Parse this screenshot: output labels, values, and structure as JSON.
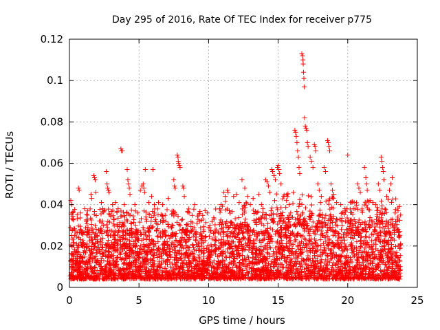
{
  "chart_data": {
    "type": "scatter",
    "title": "Day 295 of 2016, Rate Of TEC Index for receiver p775",
    "xlabel": "GPS time / hours",
    "ylabel": "ROTI / TECUs",
    "xlim": [
      0,
      25
    ],
    "ylim": [
      0,
      0.12
    ],
    "x_ticks": [
      0,
      5,
      10,
      15,
      20,
      25
    ],
    "x_tick_labels": [
      "0",
      "5",
      "10",
      "15",
      "20",
      "25"
    ],
    "y_ticks": [
      0,
      0.02,
      0.04,
      0.06,
      0.08,
      0.1,
      0.12
    ],
    "y_tick_labels": [
      "0",
      "0.02",
      "0.04",
      "0.06",
      "0.08",
      "0.1",
      "0.12"
    ],
    "grid": true,
    "marker": "+",
    "marker_color": "#ff0000",
    "series": [
      {
        "name": "ROTI",
        "note": "dense cloud of ~thousands of samples, mostly 0.005-0.03 TECU, sampled continuously from 0 to ~23.8 h",
        "points": [
          [
            0.1,
            0.042
          ],
          [
            0.15,
            0.04
          ],
          [
            0.2,
            0.036
          ],
          [
            0.25,
            0.033
          ],
          [
            0.65,
            0.048
          ],
          [
            0.7,
            0.047
          ],
          [
            0.8,
            0.036
          ],
          [
            1.1,
            0.038
          ],
          [
            1.3,
            0.037
          ],
          [
            1.55,
            0.045
          ],
          [
            1.6,
            0.043
          ],
          [
            1.75,
            0.054
          ],
          [
            1.8,
            0.053
          ],
          [
            1.85,
            0.052
          ],
          [
            1.9,
            0.046
          ],
          [
            2.3,
            0.041
          ],
          [
            2.4,
            0.038
          ],
          [
            2.65,
            0.056
          ],
          [
            2.7,
            0.05
          ],
          [
            2.75,
            0.048
          ],
          [
            2.8,
            0.047
          ],
          [
            2.85,
            0.046
          ],
          [
            3.1,
            0.04
          ],
          [
            3.3,
            0.041
          ],
          [
            3.5,
            0.038
          ],
          [
            3.7,
            0.067
          ],
          [
            3.75,
            0.066
          ],
          [
            3.8,
            0.066
          ],
          [
            3.95,
            0.04
          ],
          [
            4.1,
            0.036
          ],
          [
            4.2,
            0.052
          ],
          [
            4.25,
            0.05
          ],
          [
            4.3,
            0.048
          ],
          [
            4.35,
            0.045
          ],
          [
            4.15,
            0.057
          ],
          [
            4.7,
            0.04
          ],
          [
            4.9,
            0.036
          ],
          [
            5.1,
            0.047
          ],
          [
            5.2,
            0.049
          ],
          [
            5.3,
            0.05
          ],
          [
            5.35,
            0.048
          ],
          [
            5.4,
            0.046
          ],
          [
            5.45,
            0.057
          ],
          [
            5.7,
            0.041
          ],
          [
            5.9,
            0.044
          ],
          [
            6.0,
            0.057
          ],
          [
            6.1,
            0.04
          ],
          [
            6.4,
            0.041
          ],
          [
            6.7,
            0.04
          ],
          [
            7.1,
            0.043
          ],
          [
            7.5,
            0.052
          ],
          [
            7.55,
            0.049
          ],
          [
            7.6,
            0.048
          ],
          [
            7.75,
            0.064
          ],
          [
            7.8,
            0.063
          ],
          [
            7.82,
            0.061
          ],
          [
            7.85,
            0.06
          ],
          [
            7.9,
            0.059
          ],
          [
            7.95,
            0.058
          ],
          [
            8.15,
            0.049
          ],
          [
            8.2,
            0.048
          ],
          [
            8.25,
            0.044
          ],
          [
            8.6,
            0.036
          ],
          [
            9.0,
            0.04
          ],
          [
            9.3,
            0.035
          ],
          [
            9.6,
            0.033
          ],
          [
            9.9,
            0.036
          ],
          [
            10.1,
            0.03
          ],
          [
            10.4,
            0.033
          ],
          [
            10.8,
            0.038
          ],
          [
            10.9,
            0.04
          ],
          [
            11.1,
            0.046
          ],
          [
            11.2,
            0.044
          ],
          [
            11.35,
            0.047
          ],
          [
            11.4,
            0.046
          ],
          [
            11.8,
            0.044
          ],
          [
            12.0,
            0.045
          ],
          [
            12.2,
            0.041
          ],
          [
            12.4,
            0.052
          ],
          [
            12.6,
            0.048
          ],
          [
            12.8,
            0.044
          ],
          [
            13.0,
            0.04
          ],
          [
            13.2,
            0.043
          ],
          [
            13.4,
            0.036
          ],
          [
            13.6,
            0.045
          ],
          [
            13.8,
            0.04
          ],
          [
            13.9,
            0.038
          ],
          [
            14.1,
            0.052
          ],
          [
            14.2,
            0.051
          ],
          [
            14.3,
            0.049
          ],
          [
            14.4,
            0.046
          ],
          [
            14.55,
            0.057
          ],
          [
            14.6,
            0.056
          ],
          [
            14.7,
            0.054
          ],
          [
            14.8,
            0.052
          ],
          [
            14.95,
            0.058
          ],
          [
            15.0,
            0.059
          ],
          [
            15.05,
            0.057
          ],
          [
            15.1,
            0.055
          ],
          [
            15.2,
            0.05
          ],
          [
            15.4,
            0.044
          ],
          [
            15.6,
            0.042
          ],
          [
            15.8,
            0.04
          ],
          [
            15.9,
            0.036
          ],
          [
            16.2,
            0.076
          ],
          [
            16.25,
            0.075
          ],
          [
            16.3,
            0.073
          ],
          [
            16.35,
            0.07
          ],
          [
            16.4,
            0.066
          ],
          [
            16.45,
            0.063
          ],
          [
            16.5,
            0.058
          ],
          [
            16.55,
            0.055
          ],
          [
            16.7,
            0.113
          ],
          [
            16.75,
            0.112
          ],
          [
            16.78,
            0.11
          ],
          [
            16.8,
            0.108
          ],
          [
            16.82,
            0.104
          ],
          [
            16.85,
            0.101
          ],
          [
            16.88,
            0.097
          ],
          [
            16.9,
            0.082
          ],
          [
            16.95,
            0.078
          ],
          [
            17.0,
            0.077
          ],
          [
            17.05,
            0.076
          ],
          [
            17.1,
            0.07
          ],
          [
            17.15,
            0.068
          ],
          [
            17.3,
            0.063
          ],
          [
            17.4,
            0.061
          ],
          [
            17.5,
            0.058
          ],
          [
            17.6,
            0.069
          ],
          [
            17.65,
            0.068
          ],
          [
            17.7,
            0.066
          ],
          [
            17.85,
            0.05
          ],
          [
            17.95,
            0.047
          ],
          [
            18.1,
            0.044
          ],
          [
            18.3,
            0.058
          ],
          [
            18.4,
            0.056
          ],
          [
            18.55,
            0.071
          ],
          [
            18.6,
            0.07
          ],
          [
            18.65,
            0.068
          ],
          [
            18.7,
            0.066
          ],
          [
            18.8,
            0.05
          ],
          [
            18.9,
            0.047
          ],
          [
            19.0,
            0.045
          ],
          [
            19.2,
            0.041
          ],
          [
            19.5,
            0.04
          ],
          [
            19.8,
            0.038
          ],
          [
            20.0,
            0.064
          ],
          [
            20.2,
            0.041
          ],
          [
            20.4,
            0.038
          ],
          [
            20.7,
            0.05
          ],
          [
            20.8,
            0.048
          ],
          [
            20.9,
            0.046
          ],
          [
            21.2,
            0.058
          ],
          [
            21.3,
            0.053
          ],
          [
            21.35,
            0.05
          ],
          [
            21.4,
            0.047
          ],
          [
            21.6,
            0.042
          ],
          [
            21.8,
            0.041
          ],
          [
            22.0,
            0.04
          ],
          [
            22.2,
            0.05
          ],
          [
            22.3,
            0.047
          ],
          [
            22.4,
            0.063
          ],
          [
            22.45,
            0.061
          ],
          [
            22.5,
            0.058
          ],
          [
            22.55,
            0.056
          ],
          [
            22.6,
            0.052
          ],
          [
            22.8,
            0.044
          ],
          [
            23.0,
            0.047
          ],
          [
            23.1,
            0.05
          ],
          [
            23.2,
            0.053
          ],
          [
            23.4,
            0.036
          ],
          [
            23.6,
            0.034
          ],
          [
            23.8,
            0.035
          ]
        ]
      }
    ]
  }
}
